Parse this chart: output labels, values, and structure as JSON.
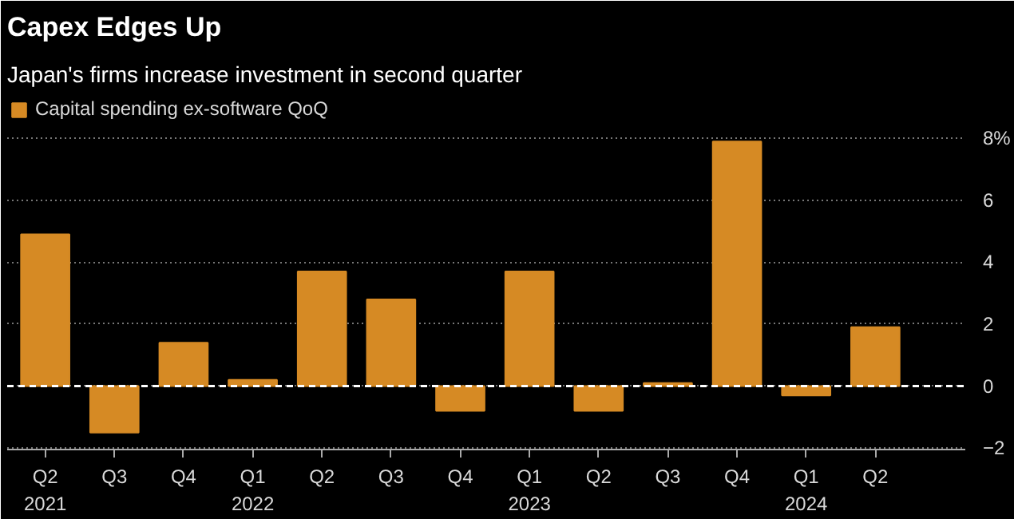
{
  "chart_data": {
    "type": "bar",
    "title": "Capex Edges Up",
    "subtitle": "Japan's firms increase investment in second quarter",
    "categories": [
      "Q2\n2021",
      "Q3",
      "Q4",
      "Q1\n2022",
      "Q2",
      "Q3",
      "Q4",
      "Q1\n2023",
      "Q2",
      "Q3",
      "Q4",
      "Q1\n2024",
      "Q2"
    ],
    "series": [
      {
        "name": "Capital spending ex-software QoQ",
        "color": "#d68a24",
        "values": [
          4.9,
          -1.5,
          1.4,
          0.2,
          3.7,
          2.8,
          -0.8,
          3.7,
          -0.8,
          0.1,
          7.9,
          -0.3,
          1.9
        ]
      }
    ],
    "ylim": [
      -2.05,
      9.4
    ],
    "yticks": [
      -2,
      0,
      2,
      4,
      6,
      {
        "value": 8,
        "label": "8%"
      }
    ],
    "grid": "y",
    "legend": "top left",
    "ref_lines": [
      {
        "axis": "y",
        "value": 0,
        "color": "#ffffff",
        "line_style": "dashed"
      }
    ]
  }
}
